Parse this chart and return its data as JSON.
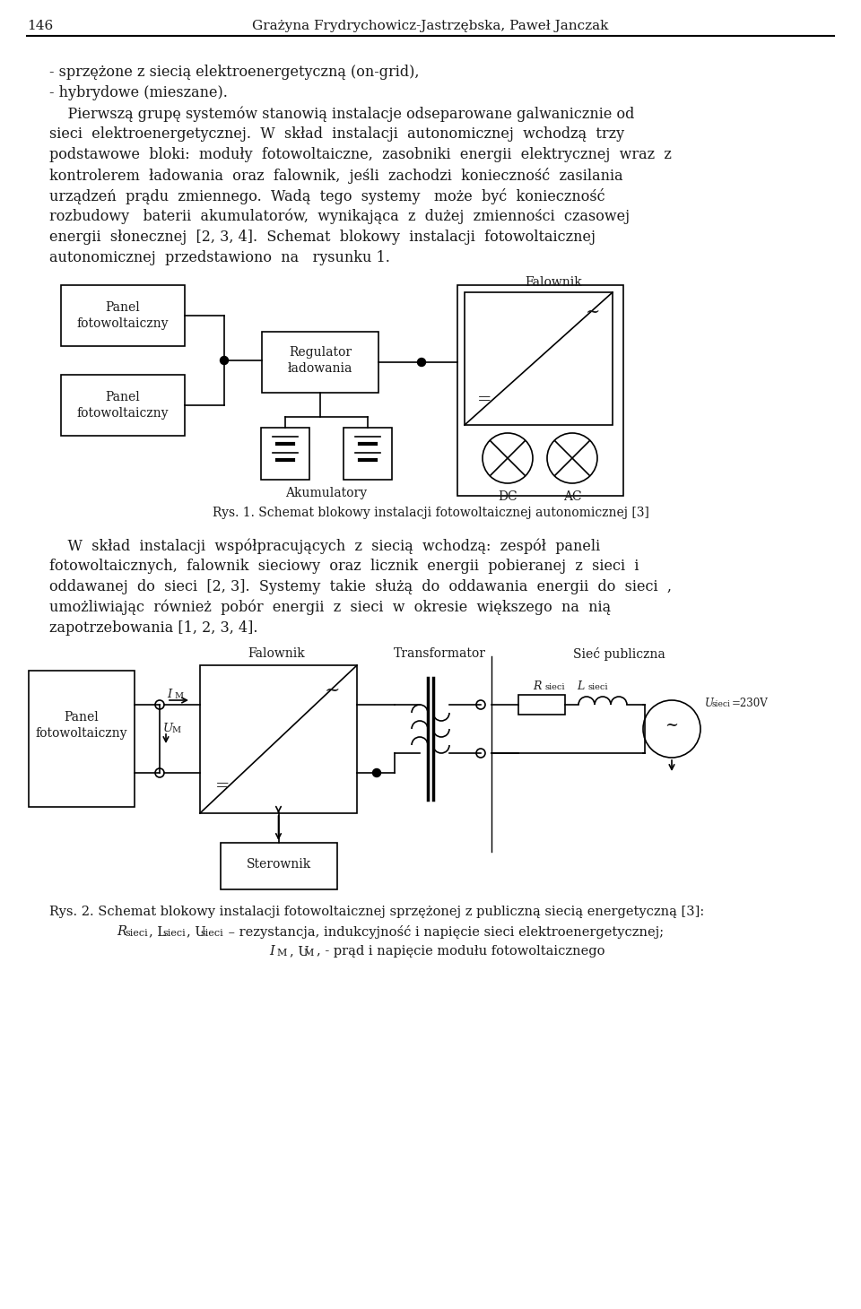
{
  "page_width": 9.6,
  "page_height": 14.6,
  "bg_color": "#ffffff",
  "text_color": "#1a1a1a",
  "header_num": "146",
  "header_title": "Grażyna Frydrychowicz-Jastrzębska, Paweł Janczak",
  "bullet1": "- sprzężone z siecią elektroenergetyczną (on-grid),",
  "bullet2": "- hybrydowe (mieszane).",
  "rys1_caption": "Rys. 1. Schemat blokowy instalacji fotowoltaicznej autonomicznej [3]"
}
